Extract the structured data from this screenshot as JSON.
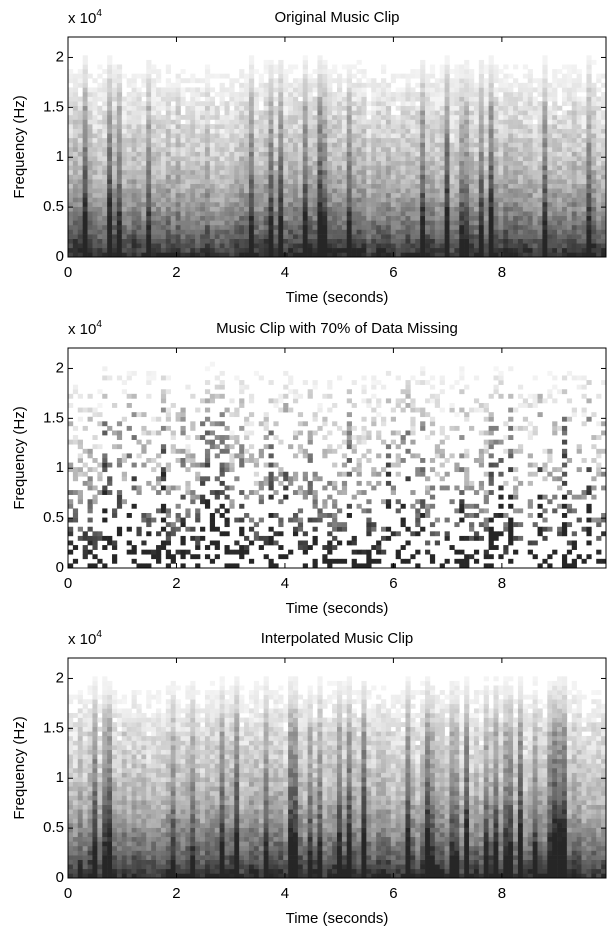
{
  "chart_data": [
    {
      "type": "spectrogram",
      "title": "Original Music Clip",
      "x_label": "Time (seconds)",
      "y_label": "Frequency (Hz)",
      "y_scale_label": {
        "base": "x 10",
        "exponent": "4"
      },
      "xlim": [
        0,
        9.92
      ],
      "xticks": [
        0,
        2,
        4,
        6,
        8
      ],
      "ylim": [
        0,
        22050
      ],
      "yticks": [
        0,
        {
          "value": 5000,
          "label": "0.5"
        },
        {
          "value": 10000,
          "label": "1"
        },
        {
          "value": 15000,
          "label": "1.5"
        },
        {
          "value": 20000,
          "label": "2"
        }
      ],
      "colormap": "gray",
      "texture": "dense"
    },
    {
      "type": "spectrogram",
      "title": "Music Clip with 70% of Data Missing",
      "x_label": "Time (seconds)",
      "y_label": "Frequency (Hz)",
      "y_scale_label": {
        "base": "x 10",
        "exponent": "4"
      },
      "xlim": [
        0,
        9.92
      ],
      "xticks": [
        0,
        2,
        4,
        6,
        8
      ],
      "ylim": [
        0,
        22050
      ],
      "yticks": [
        0,
        {
          "value": 5000,
          "label": "0.5"
        },
        {
          "value": 10000,
          "label": "1"
        },
        {
          "value": 15000,
          "label": "1.5"
        },
        {
          "value": 20000,
          "label": "2"
        }
      ],
      "colormap": "gray",
      "texture": "sparse"
    },
    {
      "type": "spectrogram",
      "title": "Interpolated Music Clip",
      "x_label": "Time (seconds)",
      "y_label": "Frequency (Hz)",
      "y_scale_label": {
        "base": "x 10",
        "exponent": "4"
      },
      "xlim": [
        0,
        9.92
      ],
      "xticks": [
        0,
        2,
        4,
        6,
        8
      ],
      "ylim": [
        0,
        22050
      ],
      "yticks": [
        0,
        {
          "value": 5000,
          "label": "0.5"
        },
        {
          "value": 10000,
          "label": "1"
        },
        {
          "value": 15000,
          "label": "1.5"
        },
        {
          "value": 20000,
          "label": "2"
        }
      ],
      "colormap": "gray",
      "texture": "dense"
    }
  ]
}
